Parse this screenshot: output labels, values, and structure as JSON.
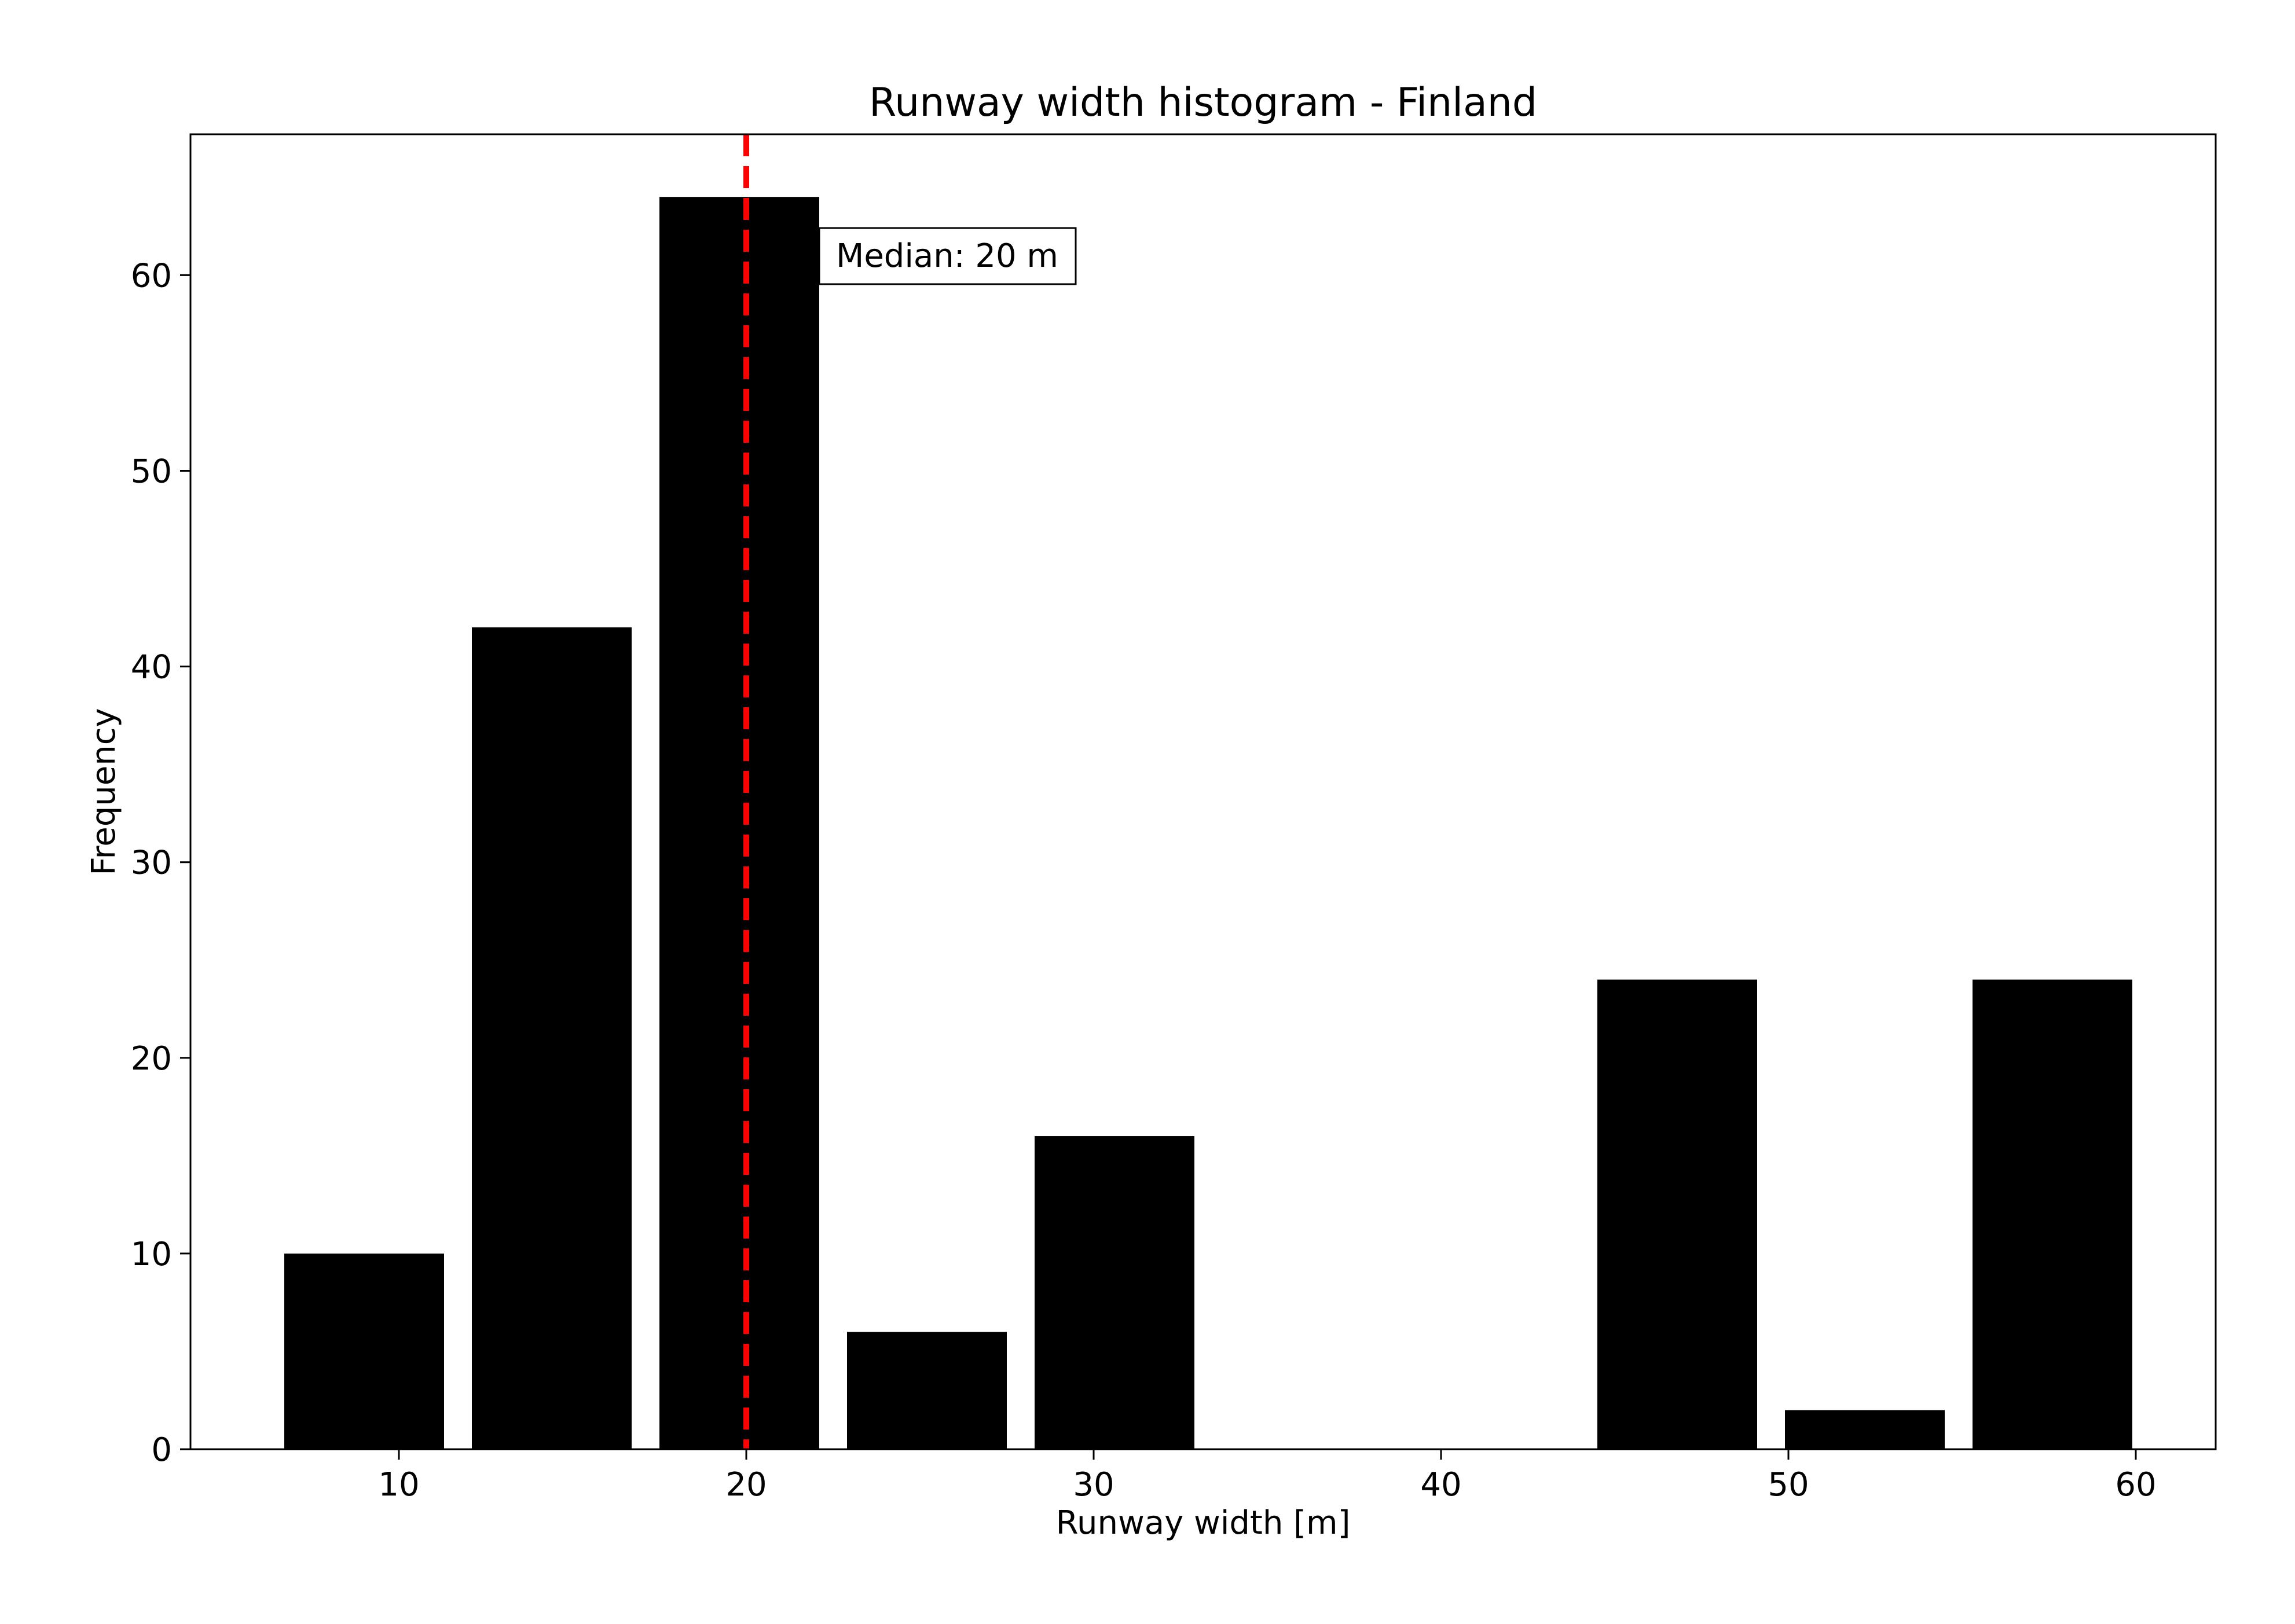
{
  "chart_data": {
    "type": "bar",
    "title": "Runway width histogram - Finland",
    "xlabel": "Runway width [m]",
    "ylabel": "Frequency",
    "xlim": [
      4.0,
      62.3
    ],
    "ylim": [
      0,
      67.2
    ],
    "xticks": [
      10,
      20,
      30,
      40,
      50,
      60
    ],
    "yticks": [
      0,
      10,
      20,
      30,
      40,
      50,
      60
    ],
    "bins": [
      {
        "start": 6.7,
        "end": 11.3,
        "value": 10
      },
      {
        "start": 12.1,
        "end": 16.7,
        "value": 42
      },
      {
        "start": 17.5,
        "end": 22.1,
        "value": 64
      },
      {
        "start": 22.9,
        "end": 27.5,
        "value": 6
      },
      {
        "start": 28.3,
        "end": 32.9,
        "value": 16
      },
      {
        "start": 33.7,
        "end": 38.3,
        "value": 0
      },
      {
        "start": 39.1,
        "end": 43.7,
        "value": 0
      },
      {
        "start": 44.5,
        "end": 49.1,
        "value": 24
      },
      {
        "start": 49.9,
        "end": 54.5,
        "value": 2
      },
      {
        "start": 55.3,
        "end": 59.9,
        "value": 24
      }
    ],
    "bar_color": "#000000",
    "median": {
      "value": 20,
      "label": "Median: 20 m",
      "color": "#ff0000",
      "style": "dashed"
    },
    "grid": false,
    "legend": "none"
  }
}
